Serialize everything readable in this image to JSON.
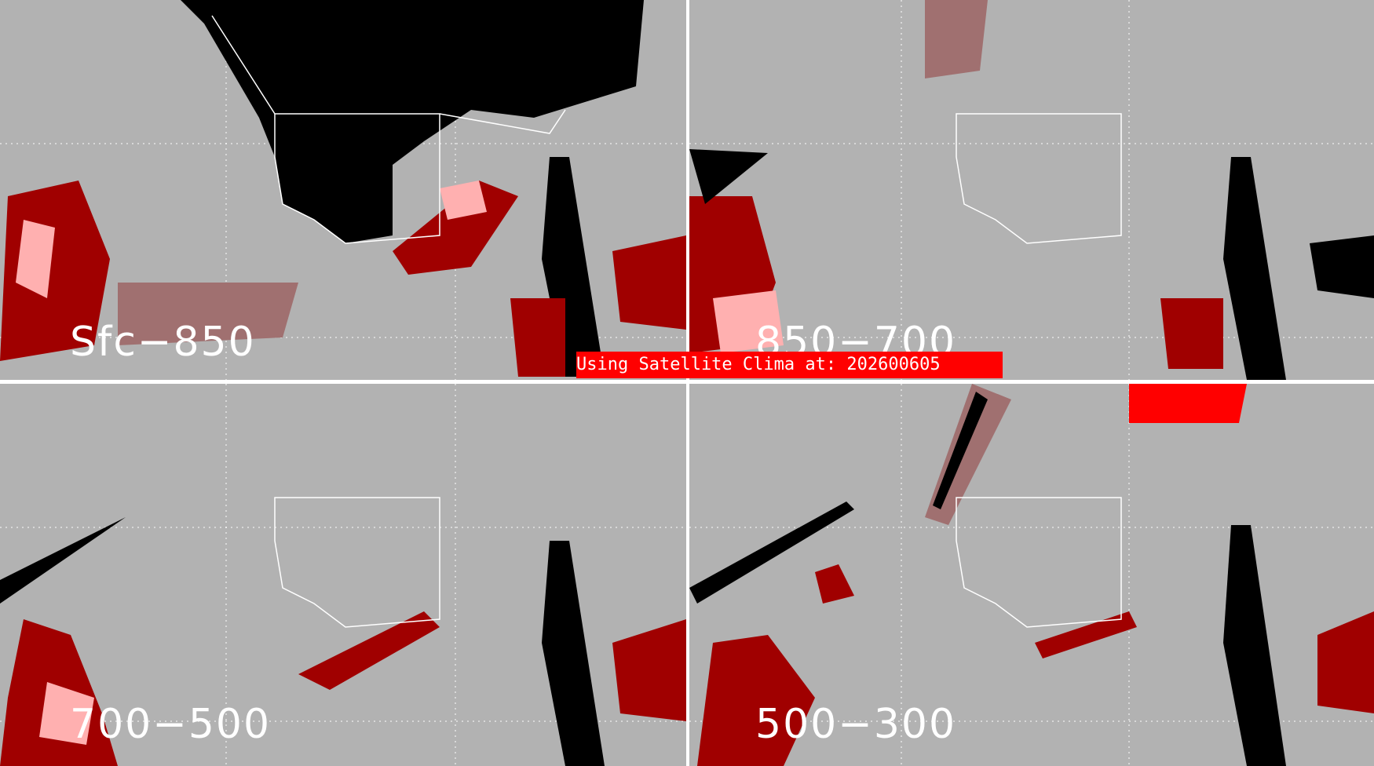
{
  "panels": [
    {
      "id": "sfc-850",
      "label": "Sfc−850"
    },
    {
      "id": "850-700",
      "label": "850−700"
    },
    {
      "id": "700-500",
      "label": "700−500"
    },
    {
      "id": "500-300",
      "label": "500−300"
    }
  ],
  "banner": {
    "text": "Using Satellite Clima at: 202600605"
  },
  "colors": {
    "background": "#b2b2b2",
    "no_data": "#000000",
    "low": "#a07070",
    "mid": "#a00000",
    "high": "#ffb0b0",
    "banner": "#ff0000",
    "borders": "#ffffff"
  }
}
